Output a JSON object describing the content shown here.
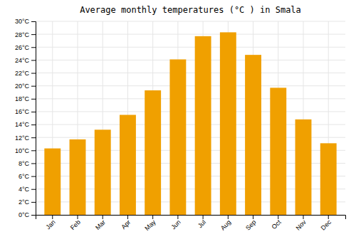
{
  "chart_data": {
    "type": "bar",
    "title": "Average monthly temperatures (°C ) in Smala",
    "categories": [
      "Jan",
      "Feb",
      "Mar",
      "Apr",
      "May",
      "Jun",
      "Jul",
      "Aug",
      "Sep",
      "Oct",
      "Nov",
      "Dec"
    ],
    "values": [
      10.3,
      11.7,
      13.2,
      15.5,
      19.3,
      24.1,
      27.7,
      28.3,
      24.8,
      19.7,
      14.8,
      11.1
    ],
    "color": "#F0A000",
    "ylim": [
      0,
      30
    ],
    "yticks": [
      {
        "value": 0,
        "label": "0°C"
      },
      {
        "value": 2,
        "label": "2°C"
      },
      {
        "value": 4,
        "label": "4°C"
      },
      {
        "value": 6,
        "label": "6°C"
      },
      {
        "value": 8,
        "label": "8°C"
      },
      {
        "value": 10,
        "label": "10°C"
      },
      {
        "value": 12,
        "label": "12°C"
      },
      {
        "value": 14,
        "label": "14°C"
      },
      {
        "value": 16,
        "label": "16°C"
      },
      {
        "value": 18,
        "label": "18°C"
      },
      {
        "value": 20,
        "label": "20°C"
      },
      {
        "value": 22,
        "label": "22°C"
      },
      {
        "value": 24,
        "label": "24°C"
      },
      {
        "value": 26,
        "label": "26°C"
      },
      {
        "value": 28,
        "label": "28°C"
      },
      {
        "value": 30,
        "label": "30°C"
      }
    ],
    "grid": true
  }
}
